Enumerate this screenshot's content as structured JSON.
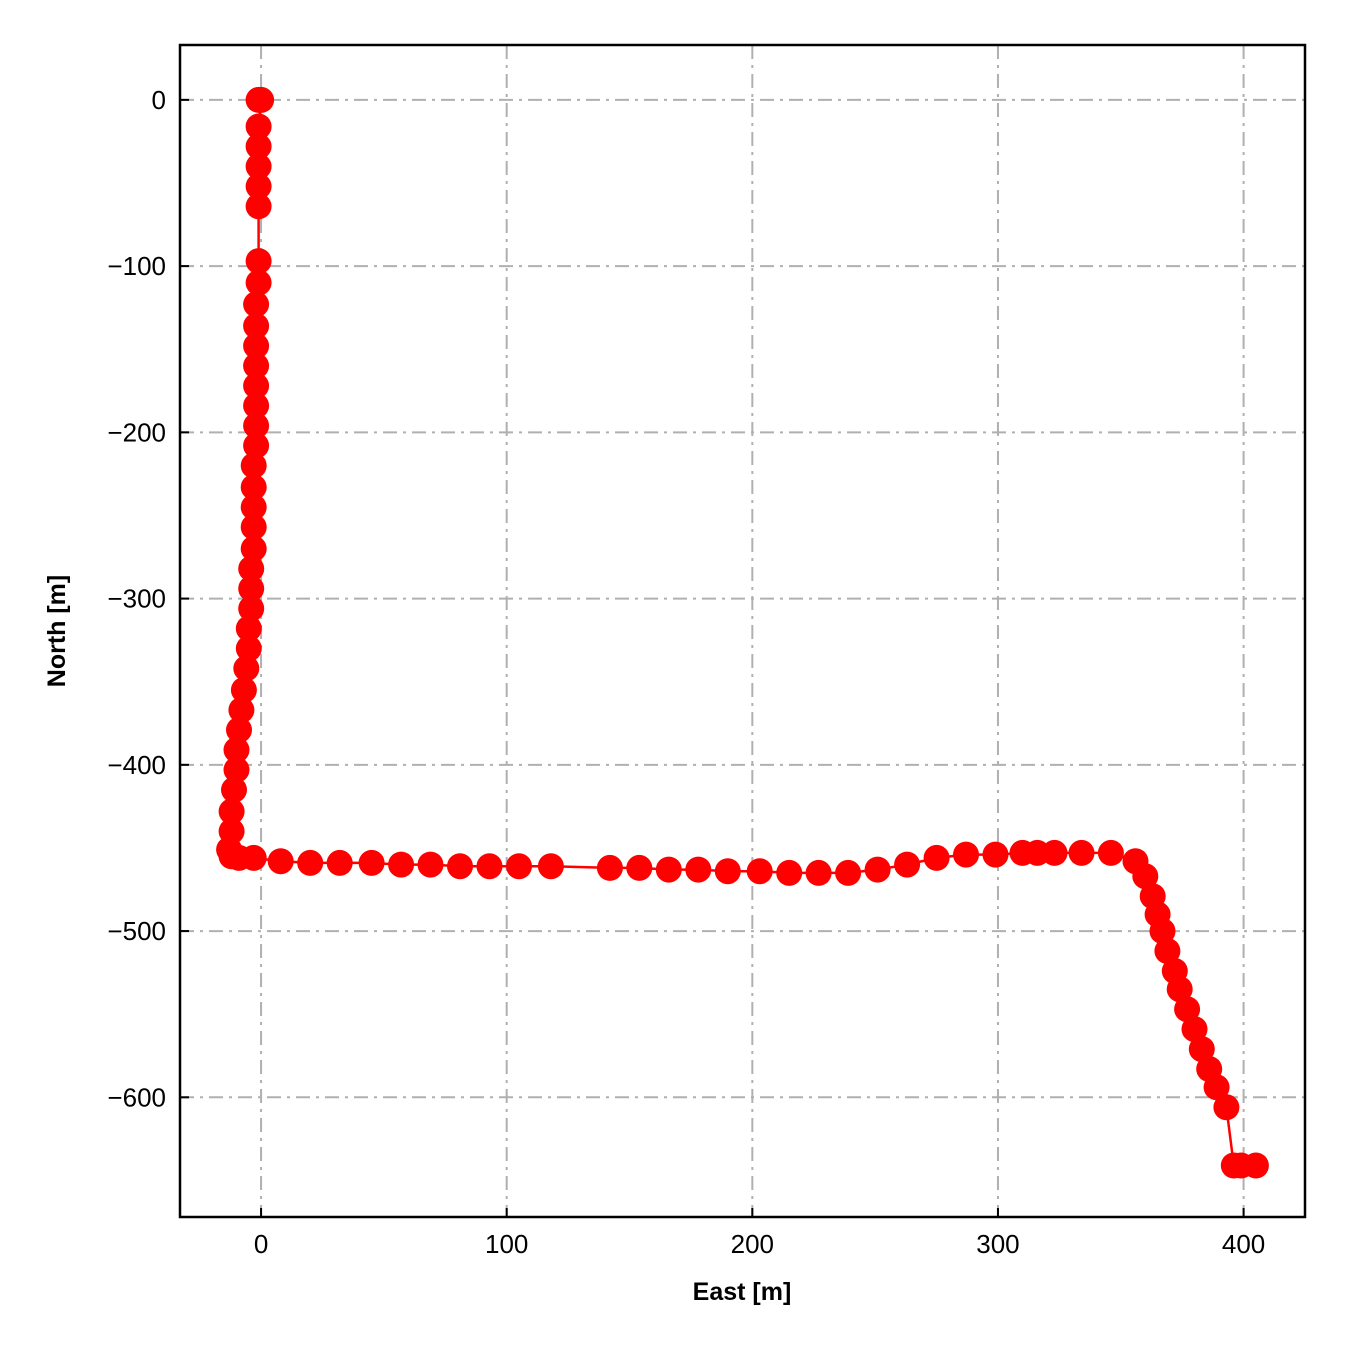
{
  "chart_data": {
    "type": "line",
    "xlabel": "East [m]",
    "ylabel": "North [m]",
    "xlim": [
      -33,
      425
    ],
    "ylim": [
      -672,
      33
    ],
    "xticks": [
      0,
      100,
      200,
      300,
      400
    ],
    "xtick_labels": [
      "0",
      "100",
      "200",
      "300",
      "400"
    ],
    "yticks": [
      0,
      -100,
      -200,
      -300,
      -400,
      -500,
      -600
    ],
    "ytick_labels": [
      "0",
      "−100",
      "−200",
      "−300",
      "−400",
      "−500",
      "−600"
    ],
    "grid": true,
    "marker": "circle",
    "color": "#ff0000",
    "series": [
      {
        "x": [
          -1,
          0,
          -1,
          -1,
          -1,
          -1,
          -1,
          -1,
          -1,
          -2,
          -2,
          -2,
          -2,
          -2,
          -2,
          -2,
          -2,
          -3,
          -3,
          -3,
          -3,
          -3,
          -4,
          -4,
          -4,
          -5,
          -5,
          -6,
          -7,
          -8,
          -9,
          -10,
          -10,
          -11,
          -12,
          -12,
          -13,
          -12,
          -9,
          -3,
          8,
          20,
          32,
          45,
          57,
          69,
          81,
          93,
          105,
          118,
          142,
          154,
          166,
          178,
          190,
          203,
          215,
          227,
          239,
          251,
          263,
          275,
          287,
          299,
          310,
          316,
          323,
          334,
          346,
          356,
          360,
          363,
          365,
          367,
          369,
          372,
          374,
          377,
          380,
          383,
          386,
          389,
          393,
          396,
          399,
          405
        ],
        "y": [
          0,
          0,
          -16,
          -28,
          -40,
          -52,
          -64,
          -97,
          -110,
          -123,
          -136,
          -148,
          -160,
          -172,
          -184,
          -196,
          -208,
          -220,
          -233,
          -245,
          -257,
          -270,
          -282,
          -294,
          -306,
          -318,
          -330,
          -342,
          -355,
          -367,
          -379,
          -391,
          -403,
          -415,
          -428,
          -440,
          -451,
          -455,
          -456,
          -456,
          -458,
          -459,
          -459,
          -459,
          -460,
          -460,
          -461,
          -461,
          -461,
          -461,
          -462,
          -462,
          -463,
          -463,
          -464,
          -464,
          -465,
          -465,
          -465,
          -463,
          -460,
          -456,
          -454,
          -454,
          -453,
          -453,
          -453,
          -453,
          -453,
          -458,
          -467,
          -479,
          -490,
          -500,
          -512,
          -524,
          -535,
          -547,
          -559,
          -571,
          -583,
          -594,
          -606,
          -641,
          -641,
          -641
        ]
      }
    ]
  }
}
